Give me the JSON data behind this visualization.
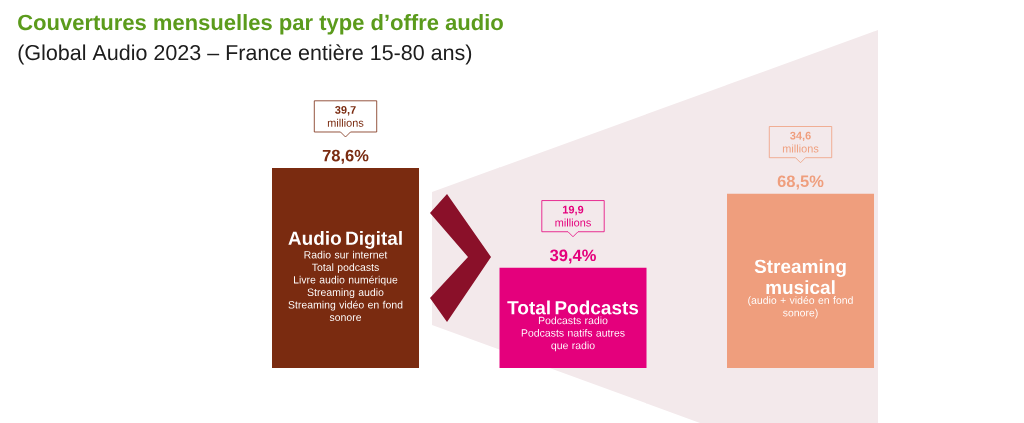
{
  "chart_data": {
    "type": "bar",
    "title": "Couvertures mensuelles par type d’offre audio",
    "subtitle": "(Global Audio 2023 – France entière 15-80 ans)",
    "categories": [
      "Audio Digital",
      "Total Podcasts",
      "Streaming musical"
    ],
    "values": [
      78.6,
      39.4,
      68.5
    ],
    "colors": [
      "#7a2b10",
      "#e4007c",
      "#ef9e7d"
    ],
    "value_labels": [
      "78,6%",
      "39,4%",
      "68,5%"
    ],
    "annotations": [
      "**39,7** millions",
      "Radio sur internet",
      "Total podcasts",
      "Livre audio numérique",
      "Streaming audio",
      "Streaming vidéo en fond sonore",
      "**19,9** millions",
      "Podcasts radio",
      "Podcasts natifs autres que radio",
      "**34,6** millions",
      "(audio + vidéo en fond sonore)"
    ]
  }
}
